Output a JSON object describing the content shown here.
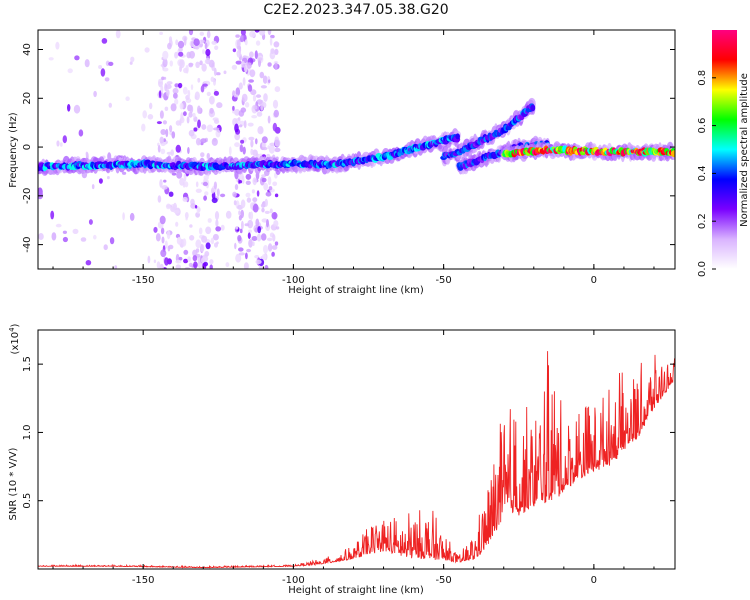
{
  "title": "C2E2.2023.347.05.38.G20",
  "chart_data": [
    {
      "type": "heatmap",
      "xlabel": "Height of straight line (km)",
      "ylabel": "Frequency (Hz)",
      "xlim": [
        -185,
        27
      ],
      "ylim": [
        -50,
        48
      ],
      "x_ticks": [
        -150,
        -100,
        -50,
        0
      ],
      "y_ticks": [
        -40,
        -20,
        0,
        20,
        40
      ],
      "colorbar": {
        "label": "Normalized spectral amplitude",
        "range": [
          0,
          1
        ],
        "ticks": [
          0.0,
          0.2,
          0.4,
          0.6,
          0.8
        ],
        "colormap": [
          "#ffffff",
          "#d9b3ff",
          "#7a00ff",
          "#0000ff",
          "#00ffff",
          "#00ff00",
          "#ffff00",
          "#ff0000",
          "#ff0080"
        ]
      },
      "ridges": [
        {
          "x": [
            -185,
            -150,
            -130,
            -100,
            -85,
            -70,
            -55,
            -45
          ],
          "y": [
            -8,
            -7,
            -8,
            -7,
            -7,
            -4,
            1,
            4
          ],
          "amplitude": 0.45
        },
        {
          "x": [
            -50,
            -45,
            -40,
            -30,
            -25,
            -20
          ],
          "y": [
            -4,
            -2,
            1,
            7,
            12,
            17
          ],
          "amplitude": 0.4
        },
        {
          "x": [
            -45,
            -35,
            -25,
            -15
          ],
          "y": [
            -8,
            -4,
            0,
            1
          ],
          "amplitude": 0.4
        },
        {
          "x": [
            -30,
            -15,
            0,
            15,
            27
          ],
          "y": [
            -3,
            -1,
            -2,
            -2,
            -2
          ],
          "amplitude": 0.9
        }
      ],
      "noise_bands": [
        {
          "x_range": [
            -185,
            -110
          ],
          "density": 0.5
        },
        {
          "x_range": [
            -145,
            -125
          ],
          "density": 1.0
        },
        {
          "x_range": [
            -120,
            -105
          ],
          "density": 0.9
        }
      ]
    },
    {
      "type": "line",
      "xlabel": "Height of straight line (km)",
      "ylabel": "SNR (10 * V/V)",
      "y_multiplier": "(x10^4)",
      "xlim": [
        -185,
        27
      ],
      "ylim": [
        0,
        1.75
      ],
      "x_ticks": [
        -150,
        -100,
        -50,
        0
      ],
      "y_ticks": [
        0.5,
        1.0,
        1.5
      ],
      "color": "#ee2222",
      "envelope": {
        "x": [
          -185,
          -160,
          -130,
          -100,
          -90,
          -80,
          -75,
          -70,
          -65,
          -60,
          -55,
          -50,
          -45,
          -40,
          -35,
          -32,
          -28,
          -25,
          -20,
          -16,
          -14,
          -10,
          -5,
          0,
          5,
          10,
          15,
          20,
          27
        ],
        "base": [
          0.02,
          0.02,
          0.01,
          0.02,
          0.04,
          0.08,
          0.12,
          0.15,
          0.12,
          0.1,
          0.1,
          0.08,
          0.05,
          0.08,
          0.2,
          0.35,
          0.45,
          0.45,
          0.5,
          0.55,
          0.55,
          0.6,
          0.7,
          0.75,
          0.8,
          0.9,
          1.0,
          1.2,
          1.4
        ],
        "amp": [
          0.01,
          0.01,
          0.01,
          0.01,
          0.04,
          0.1,
          0.2,
          0.28,
          0.28,
          0.35,
          0.4,
          0.2,
          0.05,
          0.2,
          0.5,
          0.7,
          0.8,
          0.8,
          0.7,
          1.0,
          1.2,
          0.5,
          0.6,
          0.5,
          0.6,
          0.6,
          0.5,
          0.4,
          0.15
        ]
      }
    }
  ]
}
